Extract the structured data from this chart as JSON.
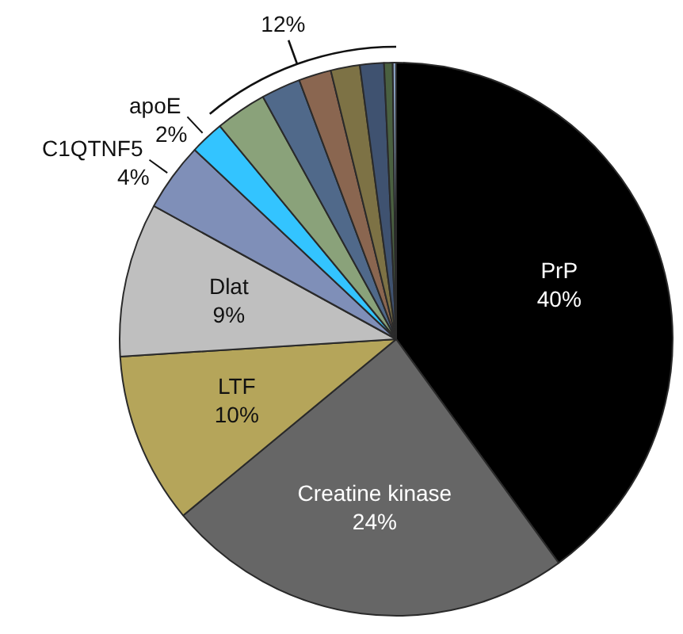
{
  "chart_data": {
    "type": "pie",
    "categories": [
      "PrP",
      "Creatine kinase",
      "LTF",
      "Dlat",
      "C1QTNF5",
      "apoE",
      null,
      null,
      null,
      null,
      null,
      null,
      null
    ],
    "values": [
      40,
      24,
      10,
      9,
      4,
      2,
      3.0,
      2.3,
      1.9,
      1.7,
      1.4,
      0.5,
      0.2
    ],
    "colors": [
      "#000000",
      "#666666",
      "#b5a55a",
      "#bfbfbf",
      "#7f8fb8",
      "#33c4ff",
      "#8aa27a",
      "#50698a",
      "#8a6650",
      "#7d7245",
      "#3f5270",
      "#4a6040",
      "#8aa0c0"
    ],
    "value_labels": [
      "40%",
      "24%",
      "10%",
      "9%",
      "4%",
      "2%",
      null,
      null,
      null,
      null,
      null,
      null,
      null
    ],
    "annotations": [
      "12%"
    ]
  }
}
